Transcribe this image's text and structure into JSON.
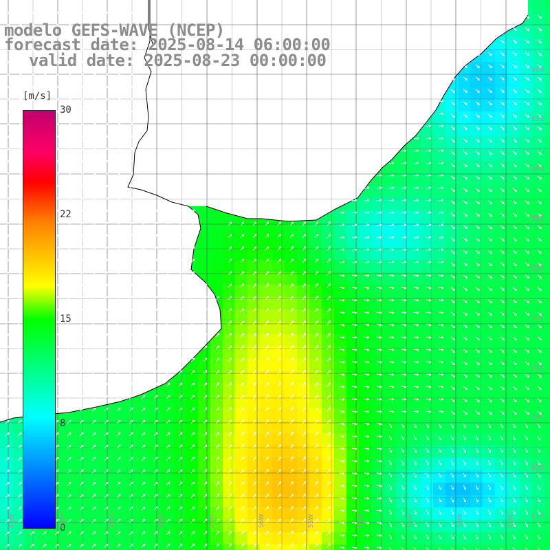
{
  "title": {
    "line1": "modelo GEFS-WAVE (NCEP)",
    "line2": "forecast date: 2025-08-14 06:00:00",
    "line3": "valid date: 2025-08-23 00:00:00"
  },
  "colorbar": {
    "unit": "[m/s]",
    "ticks": [
      "30",
      "22",
      "15",
      "8",
      "0"
    ],
    "colors": [
      "#0000ff",
      "#00ffff",
      "#00ff00",
      "#ffff00",
      "#ff8000",
      "#ff0000",
      "#c0006e"
    ]
  },
  "lat_labels": [
    "32S",
    "33S",
    "34S",
    "35S",
    "36S",
    "37S",
    "38S",
    "39S",
    "40S",
    "41S"
  ],
  "lon_labels": [
    "61W",
    "60W",
    "59W",
    "58W",
    "57W",
    "56W",
    "55W",
    "54W",
    "53W",
    "52W",
    "51W"
  ],
  "colors": {
    "land": "#ffffff",
    "grid": "#555555",
    "coast": "#000000",
    "arrows": "#ffffff",
    "labels": "#9a9a9a"
  }
}
